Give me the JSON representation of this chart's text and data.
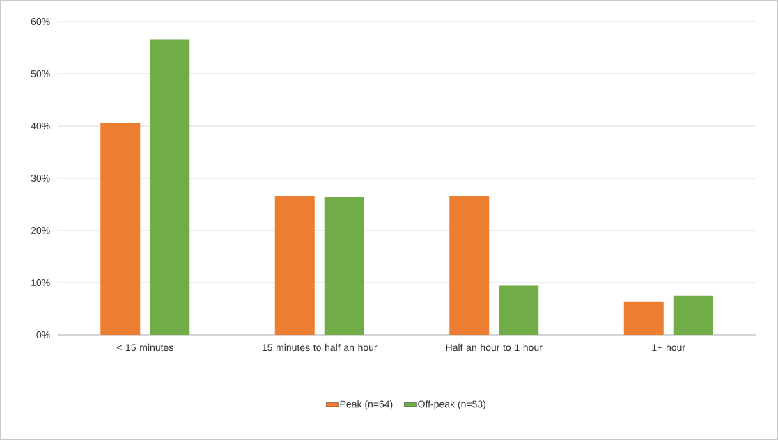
{
  "chart_data": {
    "type": "bar",
    "categories": [
      "< 15 minutes",
      "15 minutes to half an hour",
      "Half an hour to 1 hour",
      "1+ hour"
    ],
    "series": [
      {
        "name": "Peak (n=64)",
        "color": "#ed7d31",
        "values": [
          40.6,
          26.6,
          26.6,
          6.3
        ]
      },
      {
        "name": "Off-peak (n=53)",
        "color": "#70ad47",
        "values": [
          56.6,
          26.4,
          9.4,
          7.5
        ]
      }
    ],
    "ylim": [
      0,
      60
    ],
    "yticks": [
      {
        "value": 0,
        "label": "0%"
      },
      {
        "value": 10,
        "label": "10%"
      },
      {
        "value": 20,
        "label": "20%"
      },
      {
        "value": 30,
        "label": "30%"
      },
      {
        "value": 40,
        "label": "40%"
      },
      {
        "value": 50,
        "label": "50%"
      },
      {
        "value": 60,
        "label": "60%"
      }
    ],
    "grid": "y",
    "legend": "bottom"
  }
}
